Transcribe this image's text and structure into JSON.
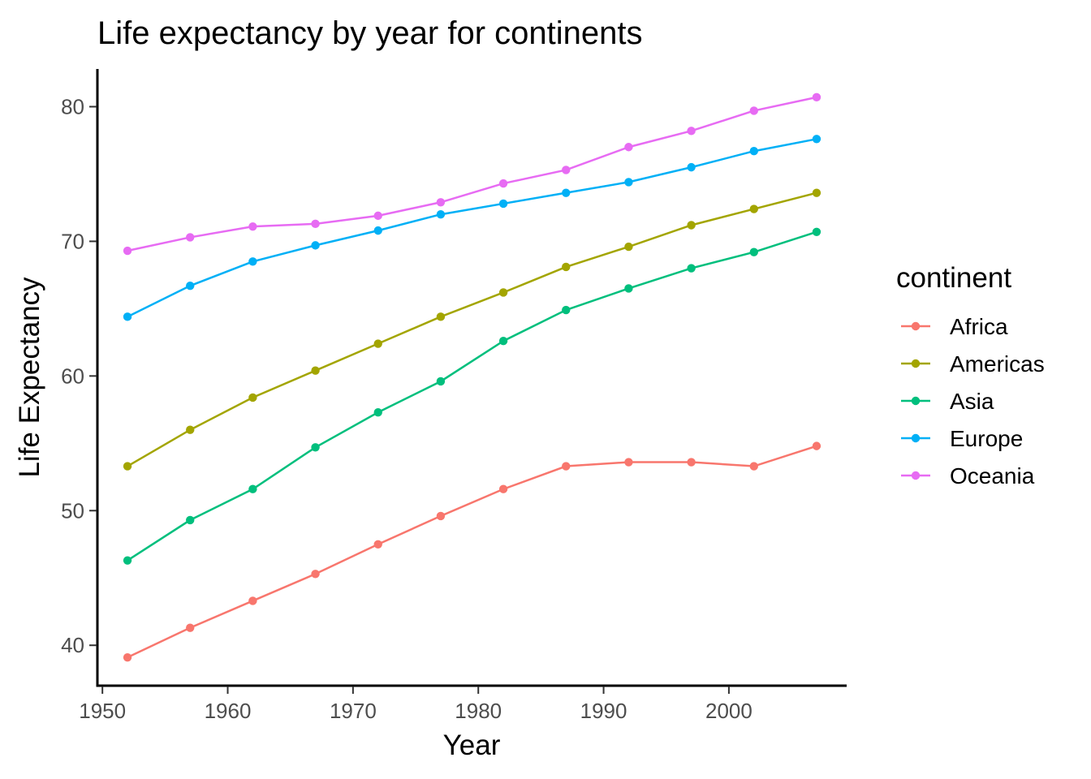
{
  "chart_data": {
    "type": "line",
    "title": "Life expectancy by year for continents",
    "xlabel": "Year",
    "ylabel": "Life Expectancy",
    "xlim": [
      1949.6,
      2009.4
    ],
    "ylim": [
      37.0,
      82.8
    ],
    "x_ticks": [
      1950,
      1960,
      1970,
      1980,
      1990,
      2000
    ],
    "y_ticks": [
      40,
      50,
      60,
      70,
      80
    ],
    "grid": false,
    "legend": {
      "title": "continent",
      "position": "right"
    },
    "x": [
      1952,
      1957,
      1962,
      1967,
      1972,
      1977,
      1982,
      1987,
      1992,
      1997,
      2002,
      2007
    ],
    "series": [
      {
        "name": "Africa",
        "color": "#F8766D",
        "values": [
          39.1,
          41.3,
          43.3,
          45.3,
          47.5,
          49.6,
          51.6,
          53.3,
          53.6,
          53.6,
          53.3,
          54.8
        ]
      },
      {
        "name": "Americas",
        "color": "#A3A500",
        "values": [
          53.3,
          56.0,
          58.4,
          60.4,
          62.4,
          64.4,
          66.2,
          68.1,
          69.6,
          71.2,
          72.4,
          73.6
        ]
      },
      {
        "name": "Asia",
        "color": "#00BF7D",
        "values": [
          46.3,
          49.3,
          51.6,
          54.7,
          57.3,
          59.6,
          62.6,
          64.9,
          66.5,
          68.0,
          69.2,
          70.7
        ]
      },
      {
        "name": "Europe",
        "color": "#00B0F6",
        "values": [
          64.4,
          66.7,
          68.5,
          69.7,
          70.8,
          72.0,
          72.8,
          73.6,
          74.4,
          75.5,
          76.7,
          77.6
        ]
      },
      {
        "name": "Oceania",
        "color": "#E76BF3",
        "values": [
          69.3,
          70.3,
          71.1,
          71.3,
          71.9,
          72.9,
          74.3,
          75.3,
          77.0,
          78.2,
          79.7,
          80.7
        ]
      }
    ]
  }
}
